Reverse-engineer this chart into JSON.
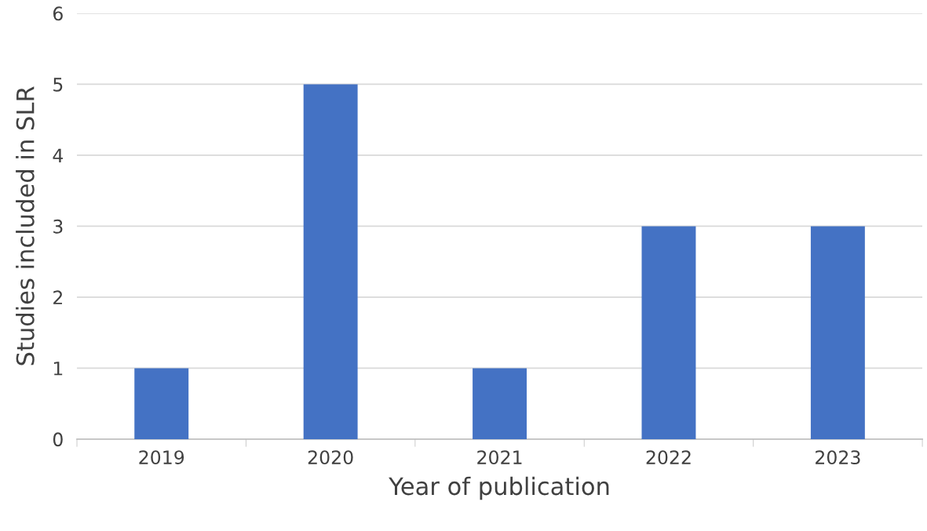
{
  "chart_data": {
    "type": "bar",
    "xlabel": "Year of publication",
    "ylabel": "Studies included in SLR",
    "categories": [
      "2019",
      "2020",
      "2021",
      "2022",
      "2023"
    ],
    "values": [
      1,
      5,
      1,
      3,
      3
    ],
    "color": "#4472c4",
    "ylim": [
      0,
      6
    ],
    "yticks": [
      0,
      1,
      2,
      3,
      4,
      5,
      6
    ],
    "grid": "y"
  }
}
